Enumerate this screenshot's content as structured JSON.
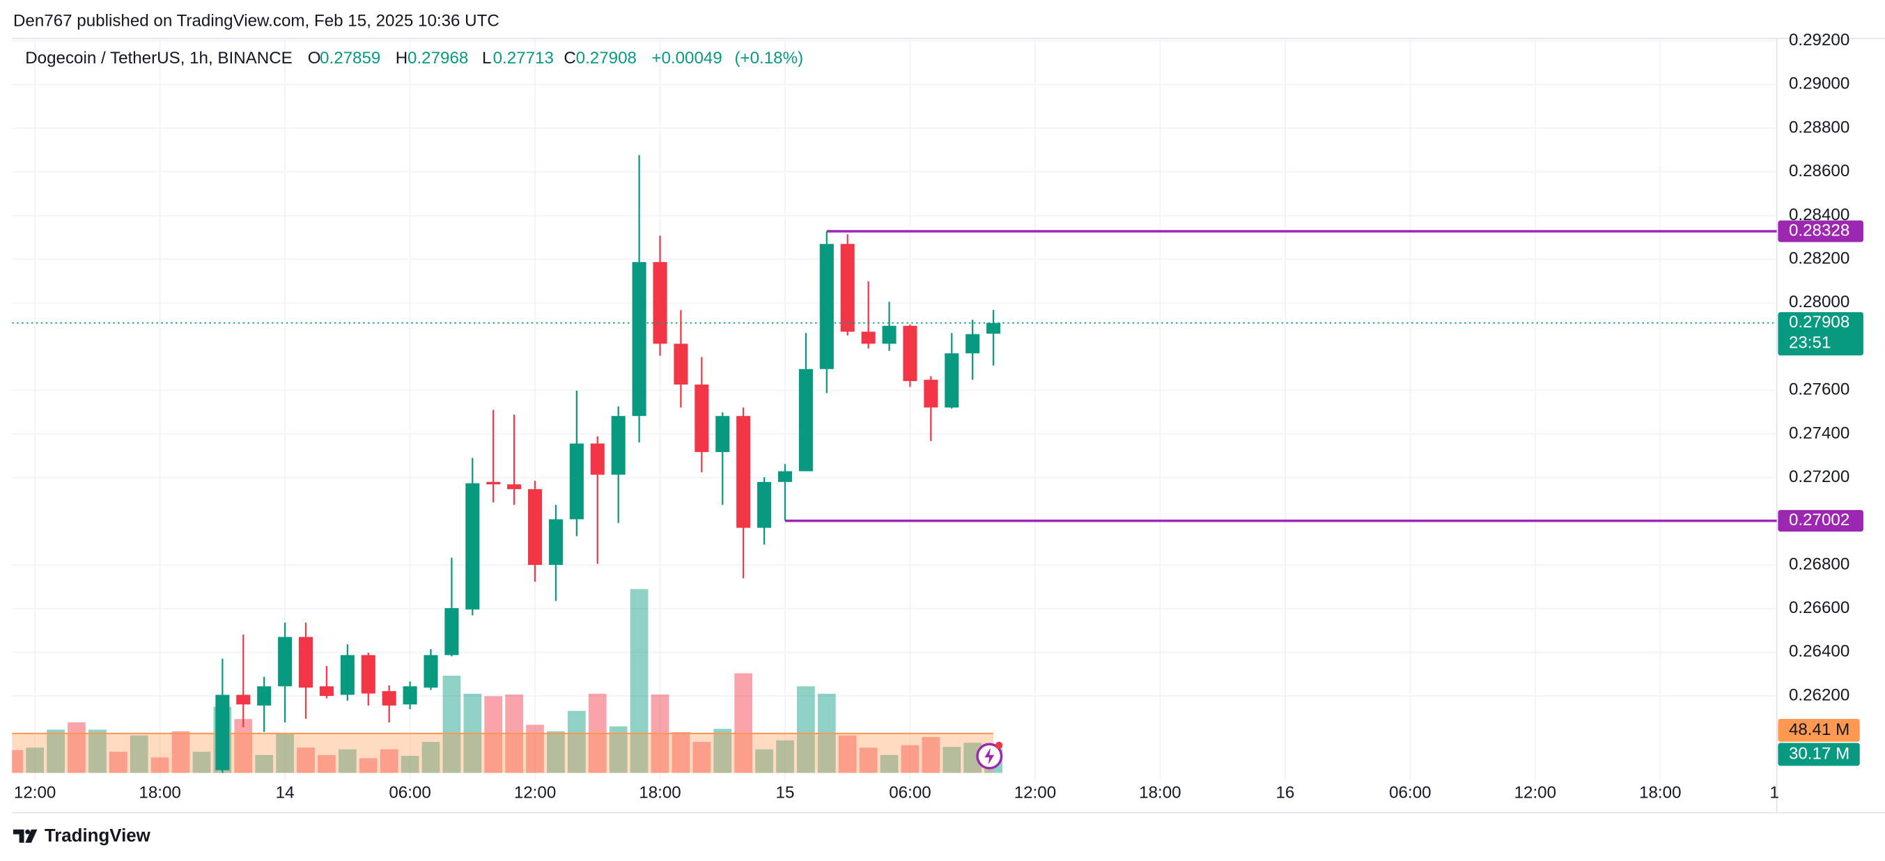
{
  "header": {
    "attribution": "Den767 published on TradingView.com, Feb 15, 2025 10:36 UTC"
  },
  "footer": {
    "brand": "TradingView"
  },
  "chart_data": {
    "type": "candlestick",
    "title": "Dogecoin / TetherUS, 1h, BINANCE",
    "ohlc_letters": [
      "O",
      "H",
      "L",
      "C"
    ],
    "change": {
      "value": 0.00049,
      "label": "+0.00049"
    },
    "change_pct": {
      "value": 0.18,
      "label": "(+0.18%)"
    },
    "countdown": "23:51",
    "up_color": "#089981",
    "down_color": "#f23645",
    "x": [
      "2025-02-13 21:00",
      "2025-02-13 22:00",
      "2025-02-13 23:00",
      "2025-02-14 00:00",
      "2025-02-14 01:00",
      "2025-02-14 02:00",
      "2025-02-14 03:00",
      "2025-02-14 04:00",
      "2025-02-14 05:00",
      "2025-02-14 06:00",
      "2025-02-14 07:00",
      "2025-02-14 08:00",
      "2025-02-14 09:00",
      "2025-02-14 10:00",
      "2025-02-14 11:00",
      "2025-02-14 12:00",
      "2025-02-14 13:00",
      "2025-02-14 14:00",
      "2025-02-14 15:00",
      "2025-02-14 16:00",
      "2025-02-14 17:00",
      "2025-02-14 18:00",
      "2025-02-14 19:00",
      "2025-02-14 20:00",
      "2025-02-14 21:00",
      "2025-02-14 22:00",
      "2025-02-14 23:00",
      "2025-02-15 00:00",
      "2025-02-15 01:00",
      "2025-02-15 02:00",
      "2025-02-15 03:00",
      "2025-02-15 04:00",
      "2025-02-15 05:00",
      "2025-02-15 06:00",
      "2025-02-15 07:00",
      "2025-02-15 08:00",
      "2025-02-15 09:00",
      "2025-02-15 10:00"
    ],
    "open": [
      0.2586,
      0.26205,
      0.26156,
      0.26244,
      0.2647,
      0.26244,
      0.26205,
      0.26387,
      0.26222,
      0.26161,
      0.26238,
      0.26387,
      0.26596,
      0.2718,
      0.27169,
      0.27147,
      0.268,
      0.27009,
      0.27356,
      0.27213,
      0.27482,
      0.28187,
      0.27813,
      0.27626,
      0.27317,
      0.27482,
      0.2697,
      0.2718,
      0.27229,
      0.27697,
      0.2827,
      0.27868,
      0.27813,
      0.27895,
      0.27648,
      0.27521,
      0.27769,
      0.27859
    ],
    "high": [
      0.2637,
      0.26481,
      0.26288,
      0.26536,
      0.26536,
      0.26337,
      0.26436,
      0.26398,
      0.26249,
      0.26266,
      0.26414,
      0.26833,
      0.2729,
      0.2751,
      0.27488,
      0.27185,
      0.27075,
      0.27598,
      0.27389,
      0.27526,
      0.28677,
      0.28308,
      0.27967,
      0.27752,
      0.27499,
      0.27521,
      0.27202,
      0.27262,
      0.27862,
      0.28328,
      0.28314,
      0.28099,
      0.28005,
      0.27901,
      0.27664,
      0.27862,
      0.27923,
      0.27968
    ],
    "low": [
      0.258,
      0.26057,
      0.26035,
      0.26079,
      0.26095,
      0.26189,
      0.26178,
      0.26156,
      0.26079,
      0.26139,
      0.26227,
      0.26381,
      0.26569,
      0.27086,
      0.27075,
      0.26723,
      0.26635,
      0.26932,
      0.26805,
      0.26992,
      0.27361,
      0.27758,
      0.27521,
      0.27224,
      0.27075,
      0.26739,
      0.26893,
      0.27002,
      0.27229,
      0.27587,
      0.27851,
      0.27791,
      0.2778,
      0.27615,
      0.27367,
      0.27516,
      0.27648,
      0.27713
    ],
    "close": [
      0.26205,
      0.26161,
      0.26244,
      0.2647,
      0.26238,
      0.262,
      0.26387,
      0.26211,
      0.26156,
      0.26244,
      0.26387,
      0.26602,
      0.27174,
      0.27169,
      0.27147,
      0.268,
      0.27009,
      0.27356,
      0.27213,
      0.27482,
      0.28187,
      0.27813,
      0.27626,
      0.27317,
      0.27482,
      0.2697,
      0.2718,
      0.27229,
      0.27697,
      0.2827,
      0.27868,
      0.27813,
      0.27895,
      0.27642,
      0.27521,
      0.27769,
      0.27857,
      0.27908
    ],
    "volume": {
      "x": [
        "2025-02-13 11:00",
        "2025-02-13 12:00",
        "2025-02-13 13:00",
        "2025-02-13 14:00",
        "2025-02-13 15:00",
        "2025-02-13 16:00",
        "2025-02-13 17:00",
        "2025-02-13 18:00",
        "2025-02-13 19:00",
        "2025-02-13 20:00",
        "2025-02-13 21:00",
        "2025-02-13 22:00",
        "2025-02-13 23:00",
        "2025-02-14 00:00",
        "2025-02-14 01:00",
        "2025-02-14 02:00",
        "2025-02-14 03:00",
        "2025-02-14 04:00",
        "2025-02-14 05:00",
        "2025-02-14 06:00",
        "2025-02-14 07:00",
        "2025-02-14 08:00",
        "2025-02-14 09:00",
        "2025-02-14 10:00",
        "2025-02-14 11:00",
        "2025-02-14 12:00",
        "2025-02-14 13:00",
        "2025-02-14 14:00",
        "2025-02-14 15:00",
        "2025-02-14 16:00",
        "2025-02-14 17:00",
        "2025-02-14 18:00",
        "2025-02-14 19:00",
        "2025-02-14 20:00",
        "2025-02-14 21:00",
        "2025-02-14 22:00",
        "2025-02-14 23:00",
        "2025-02-15 00:00",
        "2025-02-15 01:00",
        "2025-02-15 02:00",
        "2025-02-15 03:00",
        "2025-02-15 04:00",
        "2025-02-15 05:00",
        "2025-02-15 06:00",
        "2025-02-15 07:00",
        "2025-02-15 08:00",
        "2025-02-15 09:00",
        "2025-02-15 10:00"
      ],
      "values": [
        28,
        31,
        53,
        62,
        53,
        26,
        46,
        19,
        51,
        26,
        81,
        66,
        22,
        49,
        31,
        22,
        29,
        18,
        29,
        21,
        38,
        119,
        97,
        94,
        96,
        59,
        51,
        76,
        97,
        57,
        225,
        96,
        50,
        38,
        54,
        122,
        29,
        40,
        106,
        97,
        46,
        31,
        22,
        34,
        44,
        32,
        37,
        30.17
      ],
      "colors": [
        "#f23645",
        "#089981",
        "#089981",
        "#f23645",
        "#089981",
        "#f23645",
        "#089981",
        "#f23645",
        "#f23645",
        "#089981",
        "#089981",
        "#f23645",
        "#089981",
        "#089981",
        "#f23645",
        "#f23645",
        "#089981",
        "#f23645",
        "#f23645",
        "#089981",
        "#089981",
        "#089981",
        "#089981",
        "#f23645",
        "#f23645",
        "#f23645",
        "#089981",
        "#089981",
        "#f23645",
        "#089981",
        "#089981",
        "#f23645",
        "#f23645",
        "#f23645",
        "#089981",
        "#f23645",
        "#089981",
        "#089981",
        "#089981",
        "#089981",
        "#f23645",
        "#f23645",
        "#089981",
        "#f23645",
        "#f23645",
        "#089981",
        "#089981",
        "#089981"
      ],
      "ylim": [
        0,
        300
      ],
      "ma": 48.41,
      "ma_label": "48.41 M",
      "ma_color": "#ff9850",
      "last_value_label": "30.17 M"
    },
    "levels": [
      {
        "value": 0.28328,
        "start": "2025-02-15 02:00",
        "color": "#9c27b0"
      },
      {
        "value": 0.27002,
        "start": "2025-02-15 00:00",
        "color": "#9c27b0"
      }
    ],
    "xlim": [
      "2025-02-13 10:54",
      "2025-02-17 00:00"
    ],
    "ylim": [
      0.25847,
      0.29222
    ],
    "xticks": [
      {
        "value": "2025-02-13 12:00",
        "label": "12:00"
      },
      {
        "value": "2025-02-13 18:00",
        "label": "18:00"
      },
      {
        "value": "2025-02-14 00:00",
        "label": "14"
      },
      {
        "value": "2025-02-14 06:00",
        "label": "06:00"
      },
      {
        "value": "2025-02-14 12:00",
        "label": "12:00"
      },
      {
        "value": "2025-02-14 18:00",
        "label": "18:00"
      },
      {
        "value": "2025-02-15 00:00",
        "label": "15"
      },
      {
        "value": "2025-02-15 06:00",
        "label": "06:00"
      },
      {
        "value": "2025-02-15 12:00",
        "label": "12:00"
      },
      {
        "value": "2025-02-15 18:00",
        "label": "18:00"
      },
      {
        "value": "2025-02-16 00:00",
        "label": "16"
      },
      {
        "value": "2025-02-16 06:00",
        "label": "06:00"
      },
      {
        "value": "2025-02-16 12:00",
        "label": "12:00"
      },
      {
        "value": "2025-02-16 18:00",
        "label": "18:00"
      },
      {
        "value": "2025-02-17 00:00",
        "label": "1"
      }
    ],
    "yticks": [
      {
        "value": 0.292,
        "label": "0.29200"
      },
      {
        "value": 0.29,
        "label": "0.29000"
      },
      {
        "value": 0.288,
        "label": "0.28800"
      },
      {
        "value": 0.286,
        "label": "0.28600"
      },
      {
        "value": 0.284,
        "label": "0.28400"
      },
      {
        "value": 0.282,
        "label": "0.28200"
      },
      {
        "value": 0.28,
        "label": "0.28000"
      },
      {
        "value": 0.276,
        "label": "0.27600"
      },
      {
        "value": 0.274,
        "label": "0.27400"
      },
      {
        "value": 0.272,
        "label": "0.27200"
      },
      {
        "value": 0.268,
        "label": "0.26800"
      },
      {
        "value": 0.266,
        "label": "0.26600"
      },
      {
        "value": 0.264,
        "label": "0.26400"
      },
      {
        "value": 0.262,
        "label": "0.26200"
      }
    ],
    "grid": true
  }
}
